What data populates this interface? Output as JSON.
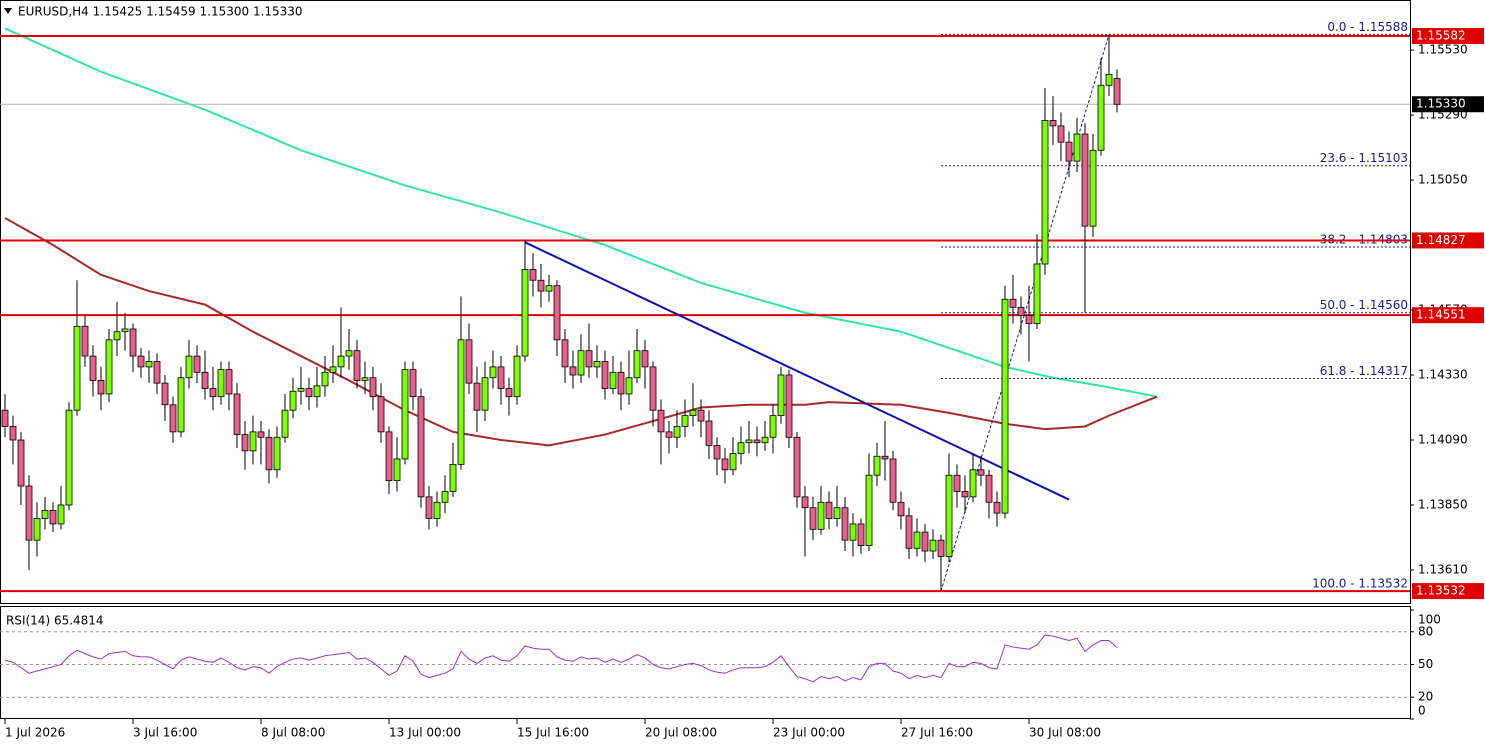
{
  "chart_data": [
    {
      "type": "candlestick",
      "title": "EURUSD,H4  1.15425 1.15459 1.15300 1.15330",
      "open": [
        1.142,
        1.1414,
        1.1409,
        1.1392,
        1.1372,
        1.138,
        1.1383,
        1.1378,
        1.1385,
        1.142,
        1.1451,
        1.144,
        1.1431,
        1.1426,
        1.1446,
        1.1449,
        1.145,
        1.144,
        1.1436,
        1.1438,
        1.143,
        1.1422,
        1.1412,
        1.1432,
        1.144,
        1.1434,
        1.1428,
        1.1425,
        1.1435,
        1.1426,
        1.1411,
        1.1405,
        1.1412,
        1.141,
        1.1398,
        1.141,
        1.142,
        1.1427,
        1.1428,
        1.1425,
        1.1429,
        1.1434,
        1.1436,
        1.144,
        1.1442,
        1.1431,
        1.1432,
        1.1425,
        1.1412,
        1.1394,
        1.1402,
        1.1435,
        1.1425,
        1.1388,
        1.138,
        1.1386,
        1.139,
        1.14,
        1.1446,
        1.143,
        1.142,
        1.1432,
        1.1436,
        1.1428,
        1.1425,
        1.144,
        1.1472,
        1.1468,
        1.1464,
        1.1466,
        1.1446,
        1.1436,
        1.1433,
        1.1442,
        1.1436,
        1.1438,
        1.1428,
        1.1434,
        1.1426,
        1.1432,
        1.1442,
        1.1436,
        1.142,
        1.1412,
        1.141,
        1.1414,
        1.1418,
        1.142,
        1.1416,
        1.1407,
        1.1402,
        1.1398,
        1.1404,
        1.1408,
        1.1409,
        1.1408,
        1.141,
        1.1418,
        1.1433,
        1.141,
        1.1388,
        1.1384,
        1.1376,
        1.1386,
        1.138,
        1.1384,
        1.1372,
        1.1378,
        1.137,
        1.1396,
        1.1403,
        1.1402,
        1.1386,
        1.1381,
        1.1369,
        1.1375,
        1.1368,
        1.1372,
        1.1366,
        1.1396,
        1.139,
        1.1388,
        1.1398,
        1.1396,
        1.1386,
        1.1382,
        1.1461,
        1.1458,
        1.1455,
        1.1452,
        1.1474,
        1.1527,
        1.1525,
        1.1519,
        1.1512,
        1.1522,
        1.1488,
        1.1516,
        1.154,
        1.15425
      ],
      "high": [
        1.1426,
        1.1418,
        1.1412,
        1.1396,
        1.1386,
        1.1388,
        1.1386,
        1.1392,
        1.1423,
        1.1468,
        1.1455,
        1.1444,
        1.1436,
        1.145,
        1.146,
        1.1456,
        1.1452,
        1.1443,
        1.1442,
        1.1441,
        1.1433,
        1.1425,
        1.1436,
        1.1446,
        1.1444,
        1.1442,
        1.1436,
        1.1438,
        1.1438,
        1.143,
        1.1416,
        1.1418,
        1.1416,
        1.1413,
        1.1414,
        1.1426,
        1.1432,
        1.1436,
        1.1432,
        1.1436,
        1.144,
        1.1444,
        1.1458,
        1.145,
        1.1446,
        1.1438,
        1.1436,
        1.143,
        1.1414,
        1.141,
        1.1438,
        1.1438,
        1.1428,
        1.1392,
        1.139,
        1.1396,
        1.1408,
        1.1462,
        1.1452,
        1.1436,
        1.1438,
        1.1442,
        1.144,
        1.1432,
        1.1444,
        1.1483,
        1.1478,
        1.1474,
        1.147,
        1.1468,
        1.145,
        1.1442,
        1.1448,
        1.1452,
        1.1444,
        1.1442,
        1.144,
        1.1438,
        1.1442,
        1.145,
        1.1446,
        1.1438,
        1.1424,
        1.1416,
        1.142,
        1.1424,
        1.143,
        1.1424,
        1.142,
        1.141,
        1.1406,
        1.141,
        1.1414,
        1.1416,
        1.1414,
        1.1416,
        1.1422,
        1.1436,
        1.1435,
        1.1412,
        1.1392,
        1.1388,
        1.1392,
        1.139,
        1.1392,
        1.1388,
        1.1382,
        1.138,
        1.1404,
        1.1408,
        1.1416,
        1.1405,
        1.139,
        1.1384,
        1.138,
        1.1378,
        1.1376,
        1.1374,
        1.1404,
        1.14,
        1.1396,
        1.1404,
        1.1403,
        1.1398,
        1.139,
        1.1466,
        1.147,
        1.1462,
        1.1466,
        1.1485,
        1.1539,
        1.1536,
        1.153,
        1.1523,
        1.1528,
        1.1526,
        1.1522,
        1.155,
        1.15588,
        1.15459
      ],
      "low": [
        1.141,
        1.14,
        1.1385,
        1.1361,
        1.1366,
        1.1376,
        1.1375,
        1.1376,
        1.1383,
        1.1418,
        1.1436,
        1.1425,
        1.142,
        1.1423,
        1.144,
        1.1442,
        1.1434,
        1.1432,
        1.143,
        1.1426,
        1.1416,
        1.1408,
        1.141,
        1.1428,
        1.143,
        1.1424,
        1.142,
        1.1422,
        1.142,
        1.1406,
        1.1398,
        1.14,
        1.14,
        1.1393,
        1.1395,
        1.1408,
        1.1417,
        1.1422,
        1.142,
        1.1421,
        1.1425,
        1.143,
        1.1432,
        1.1435,
        1.1428,
        1.1426,
        1.142,
        1.1408,
        1.1389,
        1.139,
        1.14,
        1.142,
        1.1384,
        1.1376,
        1.1377,
        1.1382,
        1.1388,
        1.1398,
        1.1426,
        1.1412,
        1.1416,
        1.1428,
        1.1422,
        1.1418,
        1.1422,
        1.1438,
        1.1462,
        1.1458,
        1.146,
        1.144,
        1.143,
        1.1428,
        1.143,
        1.1432,
        1.1432,
        1.1424,
        1.1426,
        1.142,
        1.1422,
        1.143,
        1.1428,
        1.1414,
        1.14,
        1.1404,
        1.1406,
        1.141,
        1.1414,
        1.141,
        1.1402,
        1.1396,
        1.1393,
        1.1396,
        1.14,
        1.1404,
        1.1403,
        1.1405,
        1.1404,
        1.1415,
        1.1406,
        1.1384,
        1.1366,
        1.1372,
        1.1374,
        1.1376,
        1.1377,
        1.1368,
        1.1366,
        1.1367,
        1.1368,
        1.1392,
        1.1394,
        1.1383,
        1.1376,
        1.1365,
        1.1366,
        1.1364,
        1.1365,
        1.13532,
        1.1364,
        1.1384,
        1.1382,
        1.1386,
        1.1392,
        1.138,
        1.1377,
        1.138,
        1.1452,
        1.1448,
        1.1438,
        1.145,
        1.147,
        1.1518,
        1.1512,
        1.1506,
        1.1508,
        1.1456,
        1.1484,
        1.1514,
        1.1536,
        1.153
      ],
      "close": [
        1.1414,
        1.1409,
        1.1392,
        1.1372,
        1.138,
        1.1383,
        1.1378,
        1.1385,
        1.142,
        1.1451,
        1.144,
        1.1431,
        1.1426,
        1.1446,
        1.1449,
        1.145,
        1.144,
        1.1436,
        1.1438,
        1.143,
        1.1422,
        1.1412,
        1.1432,
        1.144,
        1.1434,
        1.1428,
        1.1425,
        1.1435,
        1.1426,
        1.1411,
        1.1405,
        1.1412,
        1.141,
        1.1398,
        1.141,
        1.142,
        1.1427,
        1.1428,
        1.1425,
        1.1429,
        1.1434,
        1.1436,
        1.144,
        1.1442,
        1.1431,
        1.1432,
        1.1425,
        1.1412,
        1.1394,
        1.1402,
        1.1435,
        1.1425,
        1.1388,
        1.138,
        1.1386,
        1.139,
        1.14,
        1.1446,
        1.143,
        1.142,
        1.1432,
        1.1436,
        1.1428,
        1.1425,
        1.144,
        1.1472,
        1.1468,
        1.1464,
        1.1466,
        1.1446,
        1.1436,
        1.1433,
        1.1442,
        1.1436,
        1.1438,
        1.1428,
        1.1434,
        1.1426,
        1.1432,
        1.1442,
        1.1436,
        1.142,
        1.1412,
        1.141,
        1.1414,
        1.1418,
        1.142,
        1.1416,
        1.1407,
        1.1402,
        1.1398,
        1.1404,
        1.1408,
        1.1409,
        1.1408,
        1.141,
        1.1418,
        1.1433,
        1.141,
        1.1388,
        1.1384,
        1.1376,
        1.1386,
        1.138,
        1.1384,
        1.1372,
        1.1378,
        1.137,
        1.1396,
        1.1403,
        1.1402,
        1.1386,
        1.1381,
        1.1369,
        1.1375,
        1.1368,
        1.1372,
        1.1366,
        1.1396,
        1.139,
        1.1388,
        1.1398,
        1.1396,
        1.1386,
        1.1382,
        1.1461,
        1.1458,
        1.1455,
        1.1452,
        1.1474,
        1.1527,
        1.1525,
        1.1519,
        1.1512,
        1.1522,
        1.1488,
        1.1516,
        1.154,
        1.1544,
        1.1533
      ],
      "up_color": "#7cfc00",
      "down_color": "#e8608a",
      "xlim": [
        -0.625,
        175.625
      ],
      "xticks": [
        {
          "value": 0,
          "label": "1 Jul 2026"
        },
        {
          "value": 16,
          "label": "3 Jul 16:00"
        },
        {
          "value": 32,
          "label": "8 Jul 08:00"
        },
        {
          "value": 48,
          "label": "13 Jul 00:00"
        },
        {
          "value": 64,
          "label": "15 Jul 16:00"
        },
        {
          "value": 80,
          "label": "20 Jul 08:00"
        },
        {
          "value": 96,
          "label": "23 Jul 00:00"
        },
        {
          "value": 112,
          "label": "27 Jul 16:00"
        },
        {
          "value": 128,
          "label": "30 Jul 08:00"
        }
      ],
      "ylim": [
        1.13488,
        1.15715
      ],
      "yticks": [
        {
          "value": 1.1553,
          "label": "1.15530"
        },
        {
          "value": 1.1529,
          "label": "1.15290"
        },
        {
          "value": 1.1505,
          "label": "1.15050"
        },
        {
          "value": 1.1457,
          "label": "1.14570"
        },
        {
          "value": 1.1433,
          "label": "1.14330"
        },
        {
          "value": 1.1409,
          "label": "1.14090"
        },
        {
          "value": 1.1385,
          "label": "1.13850"
        },
        {
          "value": 1.1361,
          "label": "1.13610"
        }
      ],
      "moving_averages": [
        {
          "color": "#33e6a0",
          "x": [
            0,
            12,
            25,
            37,
            50,
            62,
            75,
            87,
            100,
            112,
            125,
            131,
            137,
            144
          ],
          "values": [
            1.1561,
            1.1545,
            1.1531,
            1.1516,
            1.1503,
            1.1493,
            1.1481,
            1.1467,
            1.1456,
            1.1449,
            1.1436,
            1.1432,
            1.1429,
            1.1425
          ]
        },
        {
          "color": "#a52a2a",
          "x": [
            0,
            6,
            12,
            18,
            25,
            31,
            37,
            43,
            50,
            56,
            62,
            68,
            75,
            81,
            87,
            93,
            100,
            103,
            112,
            118,
            125,
            130,
            135,
            138,
            144
          ],
          "values": [
            1.1491,
            1.1481,
            1.147,
            1.1464,
            1.1459,
            1.1449,
            1.144,
            1.1431,
            1.142,
            1.1412,
            1.1409,
            1.1407,
            1.1411,
            1.1416,
            1.1421,
            1.1422,
            1.1422,
            1.1423,
            1.1422,
            1.1419,
            1.1415,
            1.1413,
            1.1414,
            1.1418,
            1.1425
          ]
        }
      ],
      "trendline": {
        "color": "#1010b0",
        "x": [
          65,
          133
        ],
        "values": [
          1.1482,
          1.1387
        ]
      },
      "fibonacci": {
        "color": "#1c1c8c",
        "x": [
          117,
          138
        ],
        "values": [
          1.13532,
          1.15588
        ],
        "levels": [
          {
            "value": 1.15588,
            "label": "0.0 - 1.15588"
          },
          {
            "value": 1.15103,
            "label": "23.6 - 1.15103"
          },
          {
            "value": 1.14803,
            "label": "38.2 - 1.14803"
          },
          {
            "value": 1.1456,
            "label": "50.0 - 1.14560"
          },
          {
            "value": 1.14317,
            "label": "61.8 - 1.14317"
          },
          {
            "value": 1.13532,
            "label": "100.0 - 1.13532"
          }
        ]
      },
      "levels": {
        "color": "#e00000",
        "lines": [
          {
            "value": 1.15582,
            "label": "1.15582"
          },
          {
            "value": 1.14827,
            "label": "1.14827"
          },
          {
            "value": 1.14551,
            "label": "1.14551"
          },
          {
            "value": 1.13532,
            "label": "1.13532"
          }
        ]
      },
      "current_price": {
        "value": 1.1533,
        "label": "1.15330"
      }
    },
    {
      "type": "line",
      "title": "RSI(14) 65.4814",
      "color": "#9932cc",
      "values": [
        54,
        52,
        47,
        42,
        44,
        46,
        48,
        50,
        58,
        63,
        60,
        57,
        55,
        60,
        61,
        62,
        58,
        57,
        57,
        54,
        50,
        46,
        54,
        57,
        55,
        53,
        52,
        56,
        52,
        47,
        45,
        48,
        47,
        42,
        48,
        52,
        55,
        56,
        54,
        56,
        58,
        59,
        60,
        61,
        55,
        56,
        52,
        46,
        40,
        44,
        58,
        53,
        41,
        38,
        40,
        42,
        46,
        62,
        55,
        51,
        56,
        58,
        54,
        53,
        58,
        67,
        65,
        64,
        64,
        57,
        54,
        53,
        57,
        55,
        56,
        52,
        55,
        52,
        55,
        59,
        56,
        50,
        47,
        46,
        48,
        50,
        51,
        49,
        45,
        43,
        42,
        45,
        47,
        47,
        47,
        48,
        52,
        58,
        48,
        39,
        37,
        34,
        39,
        37,
        39,
        35,
        38,
        36,
        48,
        51,
        51,
        44,
        42,
        37,
        40,
        38,
        40,
        38,
        51,
        48,
        48,
        52,
        51,
        47,
        46,
        68,
        66,
        65,
        64,
        68,
        77,
        76,
        74,
        72,
        74,
        62,
        68,
        72,
        72,
        65.4814
      ],
      "ylim": [
        0,
        100
      ],
      "yticks": [
        100,
        80,
        50,
        20,
        0
      ],
      "grid_levels": [
        80,
        50,
        20
      ]
    }
  ]
}
